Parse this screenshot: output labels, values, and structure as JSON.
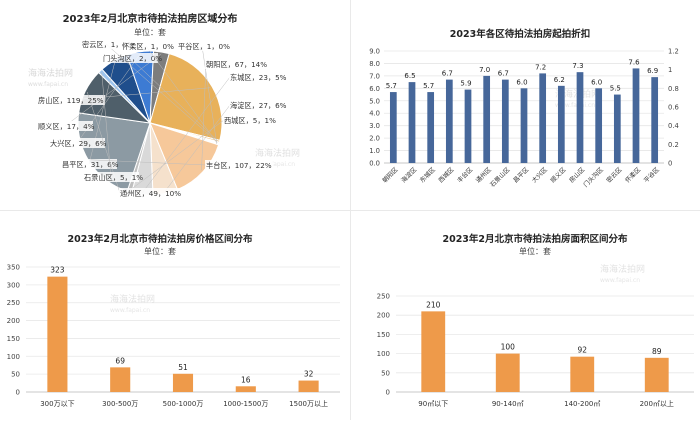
{
  "watermark": {
    "cn": "海海法拍网",
    "url": "www.fapai.cn"
  },
  "chart_data": [
    {
      "type": "pie",
      "title": "2023年2月北京市待拍法拍房区域分布",
      "subtitle": "单位：套",
      "slices": [
        {
          "name": "昌平区",
          "count": 31,
          "pct": "6%",
          "label": "昌平区，31，6%",
          "color": "#1f4e8c"
        },
        {
          "name": "大兴区",
          "count": 29,
          "pct": "6%",
          "label": "大兴区，29，6%",
          "color": "#3d7bd3"
        },
        {
          "name": "顺义区",
          "count": 17,
          "pct": "4%",
          "label": "顺义区，17，4%",
          "color": "#7d7d7d"
        },
        {
          "name": "房山区",
          "count": 119,
          "pct": "25%",
          "label": "房山区，119，25%",
          "color": "#e8b15a"
        },
        {
          "name": "门头沟区",
          "count": 2,
          "pct": "0%",
          "label": "门头沟区，2，0%",
          "color": "#f2c98d"
        },
        {
          "name": "密云区",
          "count": 1,
          "pct": "0%",
          "label": "密云区，1，0%",
          "color": "#c9c9c9"
        },
        {
          "name": "怀柔区",
          "count": 1,
          "pct": "0%",
          "label": "怀柔区，1，0%",
          "color": "#a9a9a9"
        },
        {
          "name": "平谷区",
          "count": 1,
          "pct": "0%",
          "label": "平谷区，1，0%",
          "color": "#8f8f8f"
        },
        {
          "name": "朝阳区",
          "count": 67,
          "pct": "14%",
          "label": "朝阳区，67，14%",
          "color": "#f6c89a"
        },
        {
          "name": "海淀区",
          "count": 27,
          "pct": "6%",
          "label": "海淀区，27，6%",
          "color": "#f5e1cc"
        },
        {
          "name": "东城区",
          "count": 23,
          "pct": "5%",
          "label": "东城区，23，5%",
          "color": "#d9d9d9"
        },
        {
          "name": "西城区",
          "count": 5,
          "pct": "1%",
          "label": "西城区，5，1%",
          "color": "#bfbfbf"
        },
        {
          "name": "丰台区",
          "count": 107,
          "pct": "22%",
          "label": "丰台区，107，22%",
          "color": "#8c9aa3"
        },
        {
          "name": "通州区",
          "count": 49,
          "pct": "10%",
          "label": "通州区，49，10%",
          "color": "#4f5f6a"
        },
        {
          "name": "石景山区",
          "count": 5,
          "pct": "1%",
          "label": "石景山区，5，1%",
          "color": "#9dc3ec"
        }
      ]
    },
    {
      "type": "bar",
      "title": "2023年各区待拍法拍房起拍折扣",
      "categories": [
        "朝阳区",
        "海淀区",
        "东城区",
        "西城区",
        "丰台区",
        "通州区",
        "石景山区",
        "昌平区",
        "大兴区",
        "顺义区",
        "房山区",
        "门头沟区",
        "密云区",
        "怀柔区",
        "平谷区"
      ],
      "values": [
        5.7,
        6.5,
        5.7,
        6.7,
        5.9,
        7.0,
        6.7,
        6.0,
        7.2,
        6.2,
        7.3,
        6.0,
        5.5,
        7.6,
        6.9
      ],
      "ylim_left": [
        0,
        9
      ],
      "yticks_left": [
        "0.0",
        "1.0",
        "2.0",
        "3.0",
        "4.0",
        "5.0",
        "6.0",
        "7.0",
        "8.0",
        "9.0"
      ],
      "ylim_right": [
        0,
        1.2
      ],
      "yticks_right": [
        "0",
        "0.2",
        "0.4",
        "0.6",
        "0.8",
        "1",
        "1.2"
      ],
      "bar_color": "#46679a",
      "grid": true
    },
    {
      "type": "bar",
      "title": "2023年2月北京市待拍法拍房价格区间分布",
      "subtitle": "单位：套",
      "categories": [
        "300万以下",
        "300-500万",
        "500-1000万",
        "1000-1500万",
        "1500万以上"
      ],
      "values": [
        323,
        69,
        51,
        16,
        32
      ],
      "ylim": [
        0,
        350
      ],
      "yticks": [
        "0",
        "50",
        "100",
        "150",
        "200",
        "250",
        "300",
        "350"
      ],
      "bar_color": "#ee9a4a",
      "grid": true
    },
    {
      "type": "bar",
      "title": "2023年2月北京市待拍法拍房面积区间分布",
      "subtitle": "单位：套",
      "categories": [
        "90㎡以下",
        "90-140㎡",
        "140-200㎡",
        "200㎡以上"
      ],
      "values": [
        210,
        100,
        92,
        89
      ],
      "ylim": [
        0,
        250
      ],
      "yticks": [
        "0",
        "50",
        "100",
        "150",
        "200",
        "250"
      ],
      "bar_color": "#ee9a4a",
      "grid": true
    }
  ]
}
